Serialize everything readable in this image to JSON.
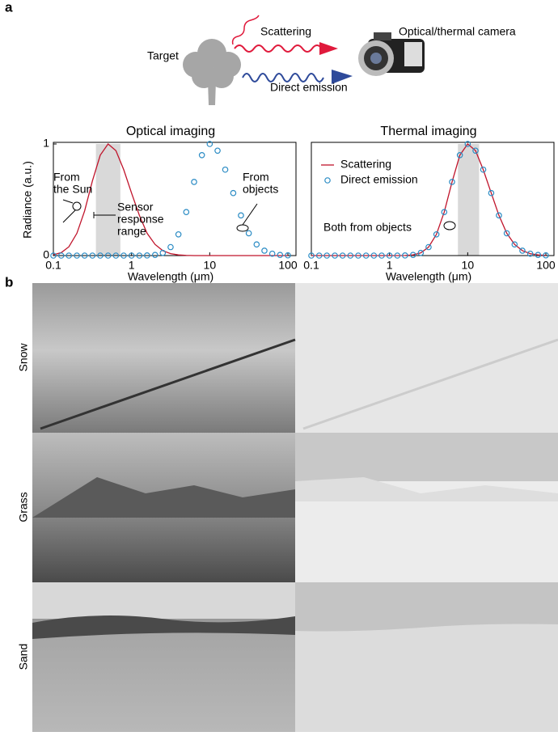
{
  "panel_labels": [
    "a",
    "b"
  ],
  "diagram": {
    "target": "Target",
    "scattering": "Scattering",
    "direct_emission": "Direct emission",
    "camera": "Optical/thermal camera"
  },
  "chart_data": [
    {
      "type": "line",
      "title": "Optical imaging",
      "x_label": "Wavelength (μm)",
      "y_label": "Radiance (a.u.)",
      "x": [
        0.1,
        0.126,
        0.158,
        0.2,
        0.251,
        0.316,
        0.398,
        0.501,
        0.631,
        0.794,
        1,
        1.26,
        1.58,
        2,
        2.51,
        3.16,
        3.98,
        5.01,
        6.31,
        7.94,
        10,
        12.6,
        15.8,
        20,
        25.1,
        31.6,
        39.8,
        50.1,
        63.1,
        79.4,
        100
      ],
      "series": [
        {
          "color": "#c0142b",
          "mode": "line",
          "values": [
            0.007,
            0.026,
            0.079,
            0.2,
            0.4,
            0.67,
            0.9,
            1,
            0.94,
            0.77,
            0.56,
            0.36,
            0.2,
            0.1,
            0.044,
            0.017,
            0.006,
            0.002,
            0,
            0,
            0,
            0,
            0,
            0,
            0,
            0,
            0,
            0,
            0,
            0,
            0
          ]
        },
        {
          "color": "#2a8bc4",
          "mode": "markers",
          "values": [
            0,
            0,
            0,
            0,
            0,
            0,
            0,
            0,
            0,
            0,
            0,
            0,
            0.001,
            0.006,
            0.024,
            0.076,
            0.19,
            0.39,
            0.66,
            0.9,
            1,
            0.94,
            0.77,
            0.56,
            0.36,
            0.2,
            0.1,
            0.044,
            0.017,
            0.006,
            0.002
          ]
        }
      ],
      "log_x": true,
      "xlim": [
        0.1,
        100
      ],
      "xticks": [
        0.1,
        1,
        10,
        100
      ],
      "ylim": [
        0,
        1
      ],
      "yticks": [
        0,
        1
      ],
      "highlight_range": [
        0.35,
        0.72
      ],
      "annotations": [
        {
          "lines": [
            "From",
            "the Sun"
          ]
        },
        {
          "lines": [
            "Sensor",
            "response",
            "range"
          ]
        },
        {
          "lines": [
            "From",
            "objects"
          ]
        }
      ]
    },
    {
      "type": "line",
      "title": "Thermal imaging",
      "x_label": "Wavelength (μm)",
      "x": [
        0.1,
        0.126,
        0.158,
        0.2,
        0.251,
        0.316,
        0.398,
        0.501,
        0.631,
        0.794,
        1,
        1.26,
        1.58,
        2,
        2.51,
        3.16,
        3.98,
        5.01,
        6.31,
        7.94,
        10,
        12.6,
        15.8,
        20,
        25.1,
        31.6,
        39.8,
        50.1,
        63.1,
        79.4,
        100
      ],
      "series": [
        {
          "name": "Scattering",
          "color": "#c0142b",
          "mode": "line",
          "values": [
            0,
            0,
            0,
            0,
            0,
            0,
            0,
            0,
            0,
            0,
            0,
            0,
            0.001,
            0.006,
            0.024,
            0.076,
            0.19,
            0.39,
            0.66,
            0.9,
            1,
            0.94,
            0.77,
            0.56,
            0.36,
            0.2,
            0.1,
            0.044,
            0.017,
            0.006,
            0.002
          ]
        },
        {
          "name": "Direct emission",
          "color": "#2a8bc4",
          "mode": "markers",
          "values": [
            0,
            0,
            0,
            0,
            0,
            0,
            0,
            0,
            0,
            0,
            0,
            0,
            0.001,
            0.006,
            0.024,
            0.076,
            0.19,
            0.39,
            0.66,
            0.9,
            1,
            0.94,
            0.77,
            0.56,
            0.36,
            0.2,
            0.1,
            0.044,
            0.017,
            0.006,
            0.002
          ]
        }
      ],
      "log_x": true,
      "xlim": [
        0.1,
        100
      ],
      "xticks": [
        0.1,
        1,
        10,
        100
      ],
      "ylim": [
        0,
        1
      ],
      "highlight_range": [
        7.5,
        14
      ],
      "legend": "upper left",
      "annotations": [
        {
          "lines": [
            "Both from objects"
          ]
        }
      ]
    }
  ],
  "images": {
    "rows": [
      "Snow",
      "Grass",
      "Sand"
    ]
  }
}
